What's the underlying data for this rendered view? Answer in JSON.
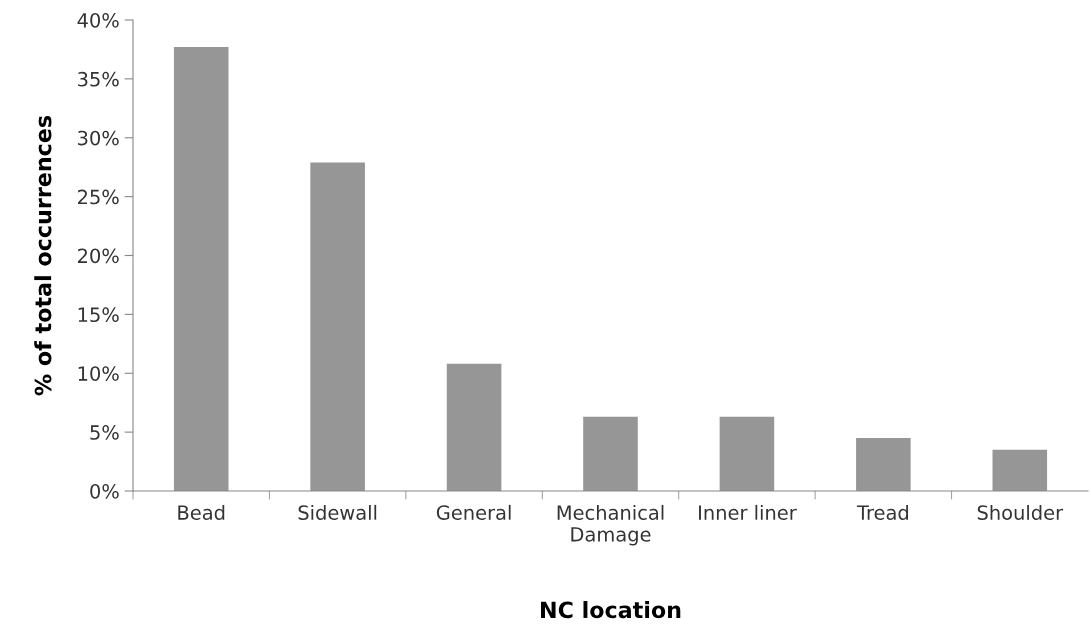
{
  "chart_data": {
    "type": "bar",
    "xlabel": "NC location",
    "ylabel": "% of total occurrences",
    "categories": [
      "Bead",
      "Sidewall",
      "General",
      "Mechanical\nDamage",
      "Inner liner",
      "Tread",
      "Shoulder"
    ],
    "values": [
      37.7,
      27.9,
      10.8,
      6.3,
      6.3,
      4.5,
      3.5
    ],
    "color": "#969696",
    "ylim": [
      0,
      40
    ],
    "yticks": [
      {
        "value": 0,
        "label": "0%"
      },
      {
        "value": 5,
        "label": "5%"
      },
      {
        "value": 10,
        "label": "10%"
      },
      {
        "value": 15,
        "label": "15%"
      },
      {
        "value": 20,
        "label": "20%"
      },
      {
        "value": 25,
        "label": "25%"
      },
      {
        "value": 30,
        "label": "30%"
      },
      {
        "value": 35,
        "label": "35%"
      },
      {
        "value": 40,
        "label": "40%"
      }
    ],
    "grid": false,
    "legend": false
  }
}
